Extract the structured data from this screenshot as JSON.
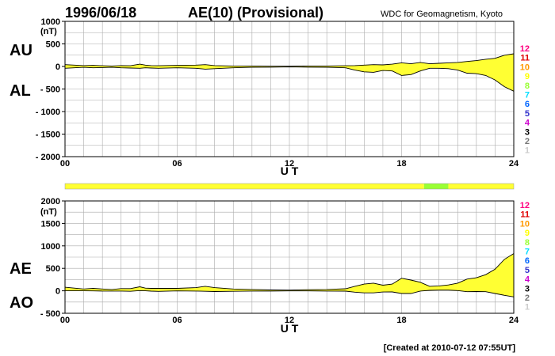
{
  "header": {
    "date": "1996/06/18",
    "title": "AE(10) (Provisional)",
    "source": "WDC for Geomagnetism, Kyoto"
  },
  "footer": {
    "created": "[Created at 2010-07-12 07:55UT]"
  },
  "colors": {
    "fill": "#ffff33",
    "stations_10": "#ffff33",
    "stations_9": "#99ff33",
    "grid": "#aaaaaa",
    "line": "#000000"
  },
  "count_legend": {
    "labels": [
      "12",
      "11",
      "10",
      "9",
      "8",
      "7",
      "6",
      "5",
      "4",
      "3",
      "2",
      "1"
    ],
    "colors": [
      "#ff0080",
      "#e00000",
      "#ff9900",
      "#ffff00",
      "#99ff33",
      "#00ddff",
      "#0066ff",
      "#3333cc",
      "#cc00cc",
      "#000000",
      "#777777",
      "#cccccc"
    ]
  },
  "chart_data": [
    {
      "type": "area",
      "panel": "AU/AL",
      "labels": {
        "upper": "AU",
        "lower": "AL",
        "unit": "(nT)",
        "xlabel": "U T"
      },
      "x_ticks": [
        "00",
        "06",
        "12",
        "18",
        "24"
      ],
      "xlim": [
        0,
        24
      ],
      "y_ticks": [
        "1000",
        "500",
        "0",
        "- 500",
        "- 1000",
        "- 1500",
        "- 2000"
      ],
      "y_tick_values": [
        1000,
        500,
        0,
        -500,
        -1000,
        -1500,
        -2000
      ],
      "ylim": [
        -2000,
        1000
      ],
      "x_hours": [
        0,
        0.5,
        1,
        1.5,
        2,
        2.5,
        3,
        3.5,
        4,
        4.3,
        4.6,
        5,
        6,
        7,
        7.5,
        8,
        9,
        10,
        11,
        12,
        13,
        14,
        15,
        15.5,
        16,
        16.5,
        17,
        17.5,
        18,
        18.5,
        19,
        19.5,
        20,
        20.5,
        21,
        21.5,
        22,
        22.5,
        23,
        23.5,
        24
      ],
      "series": [
        {
          "name": "AU",
          "values": [
            40,
            30,
            20,
            25,
            15,
            10,
            20,
            15,
            50,
            30,
            20,
            15,
            25,
            30,
            40,
            20,
            10,
            10,
            5,
            5,
            10,
            10,
            15,
            20,
            30,
            40,
            35,
            50,
            80,
            60,
            90,
            60,
            70,
            80,
            90,
            110,
            130,
            160,
            180,
            250,
            280
          ]
        },
        {
          "name": "AL",
          "values": [
            -40,
            -30,
            -20,
            -30,
            -25,
            -20,
            -30,
            -35,
            -40,
            -30,
            -35,
            -40,
            -30,
            -40,
            -60,
            -50,
            -30,
            -20,
            -15,
            -10,
            -15,
            -20,
            -30,
            -80,
            -120,
            -130,
            -90,
            -100,
            -200,
            -180,
            -100,
            -40,
            -40,
            -50,
            -80,
            -150,
            -160,
            -200,
            -300,
            -450,
            -550
          ]
        }
      ]
    },
    {
      "type": "area",
      "panel": "AE/AO",
      "labels": {
        "upper": "AE",
        "lower": "AO",
        "unit": "(nT)",
        "xlabel": "U T"
      },
      "x_ticks": [
        "00",
        "06",
        "12",
        "18",
        "24"
      ],
      "xlim": [
        0,
        24
      ],
      "y_ticks": [
        "2000",
        "1500",
        "1000",
        "500",
        "0",
        "- 500"
      ],
      "y_tick_values": [
        2000,
        1500,
        1000,
        500,
        0,
        -500
      ],
      "ylim": [
        -500,
        2000
      ],
      "x_hours": [
        0,
        0.5,
        1,
        1.5,
        2,
        2.5,
        3,
        3.5,
        4,
        4.3,
        4.6,
        5,
        6,
        7,
        7.5,
        8,
        9,
        10,
        11,
        12,
        13,
        14,
        15,
        15.5,
        16,
        16.5,
        17,
        17.5,
        18,
        18.5,
        19,
        19.5,
        20,
        20.5,
        21,
        21.5,
        22,
        22.5,
        23,
        23.5,
        24
      ],
      "series": [
        {
          "name": "AE",
          "values": [
            80,
            60,
            40,
            55,
            40,
            30,
            50,
            50,
            90,
            60,
            55,
            55,
            55,
            70,
            100,
            70,
            40,
            30,
            20,
            15,
            25,
            30,
            45,
            100,
            150,
            170,
            125,
            150,
            280,
            240,
            190,
            100,
            110,
            130,
            170,
            260,
            290,
            360,
            480,
            700,
            830
          ]
        },
        {
          "name": "AO",
          "values": [
            0,
            0,
            0,
            -2,
            -5,
            -5,
            -5,
            -10,
            5,
            0,
            -7,
            -12,
            -2,
            -5,
            -10,
            -15,
            -10,
            -5,
            -5,
            -2,
            -2,
            -5,
            -7,
            -30,
            -45,
            -45,
            -27,
            -25,
            -60,
            -60,
            -5,
            10,
            15,
            15,
            5,
            -20,
            -15,
            -20,
            -60,
            -100,
            -135
          ]
        }
      ]
    }
  ],
  "station_bar": {
    "segments": [
      {
        "from": 0,
        "to": 19.2,
        "count": 10
      },
      {
        "from": 19.2,
        "to": 20.5,
        "count": 9
      },
      {
        "from": 20.5,
        "to": 24,
        "count": 10
      }
    ]
  }
}
